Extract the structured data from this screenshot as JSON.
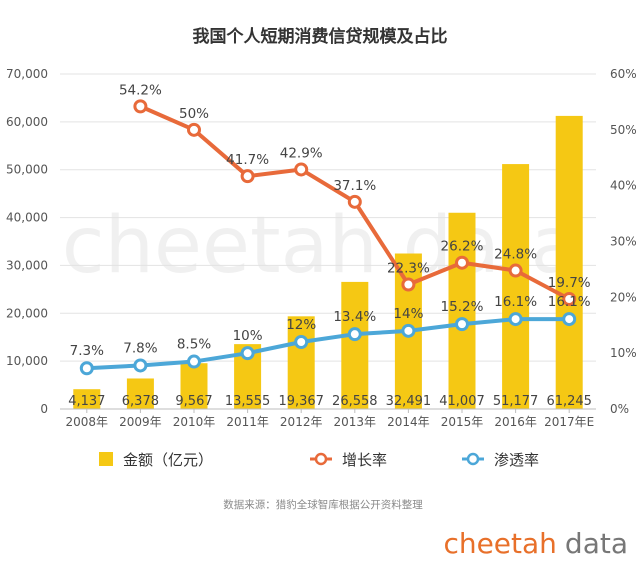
{
  "chart_data": {
    "type": "bar",
    "title": "我国个人短期消费信贷规模及占比",
    "categories": [
      "2008年",
      "2009年",
      "2010年",
      "2011年",
      "2012年",
      "2013年",
      "2014年",
      "2015年",
      "2016年",
      "2017年E"
    ],
    "series": [
      {
        "name": "金额（亿元）",
        "type": "bar",
        "axis": "left",
        "color": "#F5C814",
        "values": [
          4137,
          6378,
          9567,
          13555,
          19367,
          26558,
          32491,
          41007,
          51177,
          61245
        ],
        "labels": [
          "4,137",
          "6,378",
          "9,567",
          "13,555",
          "19,367",
          "26,558",
          "32,491",
          "41,007",
          "51,177",
          "61,245"
        ]
      },
      {
        "name": "增长率",
        "type": "line",
        "axis": "right",
        "color": "#E86A3A",
        "values": [
          null,
          54.2,
          50,
          41.7,
          42.9,
          37.1,
          22.3,
          26.2,
          24.8,
          19.7
        ],
        "labels": [
          null,
          "54.2%",
          "50%",
          "41.7%",
          "42.9%",
          "37.1%",
          "22.3%",
          "26.2%",
          "24.8%",
          "19.7%"
        ]
      },
      {
        "name": "渗透率",
        "type": "line",
        "axis": "right",
        "color": "#4CA7D8",
        "values": [
          7.3,
          7.8,
          8.5,
          10,
          12,
          13.4,
          14,
          15.2,
          16.1,
          16.1
        ],
        "labels": [
          "7.3%",
          "7.8%",
          "8.5%",
          "10%",
          "12%",
          "13.4%",
          "14%",
          "15.2%",
          "16.1%",
          "16.1%"
        ]
      }
    ],
    "y_left": {
      "min": 0,
      "max": 70000,
      "ticks": [
        0,
        10000,
        20000,
        30000,
        40000,
        50000,
        60000,
        70000
      ],
      "tick_labels": [
        "0",
        "10,000",
        "20,000",
        "30,000",
        "40,000",
        "50,000",
        "60,000",
        "70,000"
      ]
    },
    "y_right": {
      "min": 0,
      "max": 60,
      "ticks": [
        0,
        10,
        20,
        30,
        40,
        50,
        60
      ],
      "tick_labels": [
        "0%",
        "10%",
        "20%",
        "30%",
        "40%",
        "50%",
        "60%"
      ]
    },
    "grid": true,
    "legend_position": "bottom"
  },
  "source_note": "数据来源：猎豹全球智库根据公开资料整理",
  "watermark": "cheetah data",
  "brand": {
    "word1": "cheetah",
    "word2": "data",
    "color1": "#E8702A",
    "color2": "#777777"
  }
}
